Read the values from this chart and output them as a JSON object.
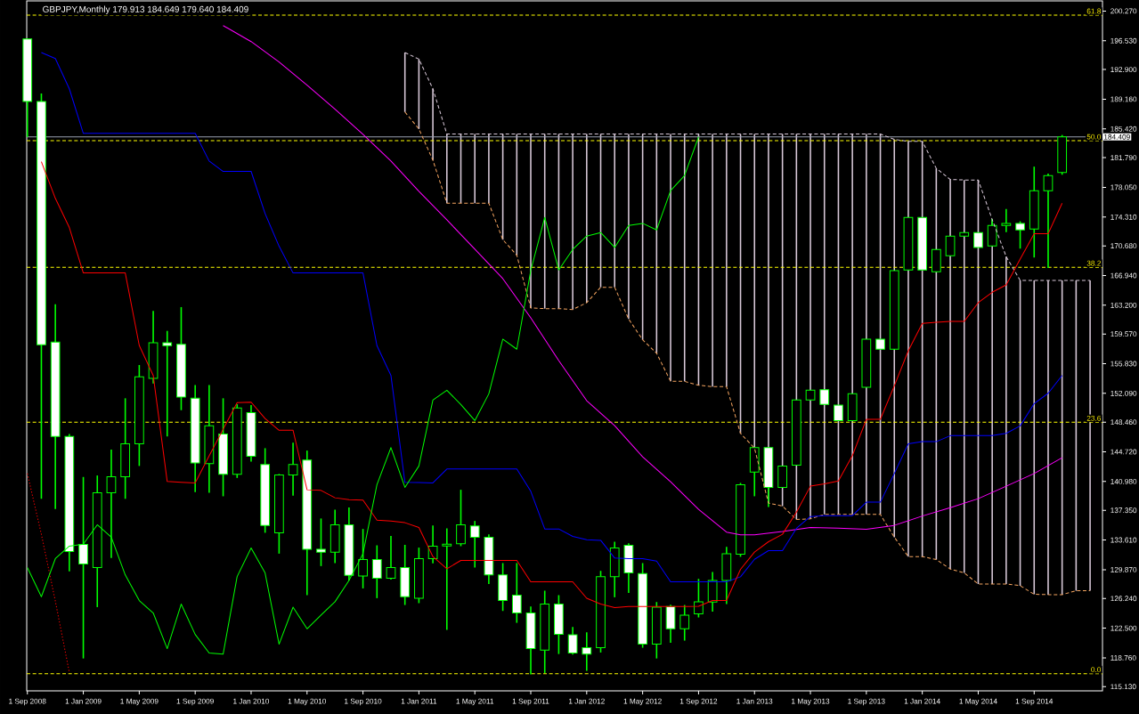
{
  "chart_data": {
    "type": "candlestick",
    "title": "GBPJPY,Monthly  179.913 184.649 179.640 184.409",
    "color": "#00ff00",
    "x": [
      "2008-09",
      "2008-10",
      "2008-11",
      "2008-12",
      "2009-01",
      "2009-02",
      "2009-03",
      "2009-04",
      "2009-05",
      "2009-06",
      "2009-07",
      "2009-08",
      "2009-09",
      "2009-10",
      "2009-11",
      "2009-12",
      "2010-01",
      "2010-02",
      "2010-03",
      "2010-04",
      "2010-05",
      "2010-06",
      "2010-07",
      "2010-08",
      "2010-09",
      "2010-10",
      "2010-11",
      "2010-12",
      "2011-01",
      "2011-02",
      "2011-03",
      "2011-04",
      "2011-05",
      "2011-06",
      "2011-07",
      "2011-08",
      "2011-09",
      "2011-10",
      "2011-11",
      "2011-12",
      "2012-01",
      "2012-02",
      "2012-03",
      "2012-04",
      "2012-05",
      "2012-06",
      "2012-07",
      "2012-08",
      "2012-09",
      "2012-10",
      "2012-11",
      "2012-12",
      "2013-01",
      "2013-02",
      "2013-03",
      "2013-04",
      "2013-05",
      "2013-06",
      "2013-07",
      "2013-08",
      "2013-09",
      "2013-10",
      "2013-11",
      "2013-12",
      "2014-01",
      "2014-02",
      "2014-03",
      "2014-04",
      "2014-05",
      "2014-06",
      "2014-07",
      "2014-08",
      "2014-09",
      "2014-10",
      "2014-11"
    ],
    "ohlc": [
      [
        196.75,
        196.75,
        184.4,
        188.88
      ],
      [
        188.88,
        189.87,
        138.8,
        158.22
      ],
      [
        158.56,
        163.33,
        137.5,
        146.66
      ],
      [
        146.66,
        146.98,
        129.66,
        132.16
      ],
      [
        133.06,
        141.55,
        118.68,
        130.58
      ],
      [
        130.14,
        141.74,
        125.15,
        139.57
      ],
      [
        139.57,
        145.0,
        131.34,
        141.59
      ],
      [
        141.59,
        151.47,
        138.8,
        145.74
      ],
      [
        145.74,
        155.66,
        142.94,
        154.17
      ],
      [
        153.97,
        162.47,
        153.34,
        158.47
      ],
      [
        158.47,
        159.96,
        146.66,
        158.1
      ],
      [
        158.27,
        162.96,
        149.97,
        151.62
      ],
      [
        151.47,
        153.15,
        139.64,
        143.31
      ],
      [
        143.23,
        153.15,
        139.57,
        147.99
      ],
      [
        146.98,
        151.47,
        139.12,
        141.88
      ],
      [
        141.88,
        150.72,
        141.43,
        150.24
      ],
      [
        149.67,
        150.6,
        143.5,
        144.17
      ],
      [
        143.12,
        145.18,
        134.52,
        135.45
      ],
      [
        134.52,
        141.93,
        131.89,
        141.81
      ],
      [
        141.81,
        145.86,
        139.19,
        143.12
      ],
      [
        143.68,
        144.88,
        126.66,
        132.45
      ],
      [
        132.45,
        136.32,
        130.32,
        132.08
      ],
      [
        132.08,
        137.44,
        130.7,
        135.53
      ],
      [
        135.53,
        137.7,
        128.52,
        129.16
      ],
      [
        129.08,
        135.0,
        127.51,
        131.15
      ],
      [
        131.15,
        132.94,
        126.28,
        128.79
      ],
      [
        128.79,
        134.13,
        128.63,
        130.14
      ],
      [
        130.14,
        133.0,
        125.42,
        126.46
      ],
      [
        126.28,
        132.65,
        125.65,
        131.26
      ],
      [
        131.26,
        135.45,
        130.66,
        132.83
      ],
      [
        132.87,
        135.08,
        122.28,
        133.09
      ],
      [
        133.13,
        139.94,
        132.83,
        135.53
      ],
      [
        135.37,
        136.01,
        130.14,
        133.96
      ],
      [
        133.96,
        134.33,
        128.07,
        129.2
      ],
      [
        129.2,
        130.7,
        124.67,
        125.98
      ],
      [
        126.66,
        130.7,
        123.17,
        124.41
      ],
      [
        124.41,
        125.23,
        116.66,
        119.92
      ],
      [
        119.73,
        127.22,
        116.84,
        125.53
      ],
      [
        125.53,
        126.66,
        119.24,
        121.71
      ],
      [
        121.67,
        122.65,
        119.17,
        119.36
      ],
      [
        120.03,
        121.97,
        117.12,
        119.24
      ],
      [
        120.03,
        129.72,
        119.43,
        129.0
      ],
      [
        129.0,
        133.39,
        126.39,
        132.61
      ],
      [
        132.94,
        133.2,
        126.95,
        129.46
      ],
      [
        129.38,
        130.7,
        120.03,
        120.48
      ],
      [
        120.48,
        125.79,
        118.68,
        125.15
      ],
      [
        125.23,
        125.45,
        120.66,
        122.42
      ],
      [
        122.42,
        125.42,
        120.93,
        124.14
      ],
      [
        124.3,
        128.71,
        123.85,
        125.83
      ],
      [
        125.79,
        129.57,
        124.59,
        128.52
      ],
      [
        128.52,
        132.75,
        125.53,
        131.89
      ],
      [
        131.82,
        140.8,
        131.49,
        140.58
      ],
      [
        142.18,
        145.25,
        139.12,
        145.25
      ],
      [
        145.25,
        145.25,
        137.77,
        140.24
      ],
      [
        140.24,
        142.94,
        140.24,
        142.94
      ],
      [
        143.05,
        151.25,
        143.05,
        151.25
      ],
      [
        151.25,
        152.48,
        151.25,
        152.48
      ],
      [
        152.55,
        152.55,
        150.69,
        150.69
      ],
      [
        150.6,
        150.6,
        148.66,
        148.66
      ],
      [
        148.66,
        152.03,
        148.66,
        152.03
      ],
      [
        152.85,
        158.92,
        152.85,
        158.92
      ],
      [
        158.92,
        158.92,
        157.65,
        157.65
      ],
      [
        157.65,
        167.56,
        157.65,
        167.56
      ],
      [
        167.64,
        174.26,
        167.64,
        174.26
      ],
      [
        174.26,
        174.26,
        167.64,
        167.64
      ],
      [
        167.42,
        170.22,
        167.42,
        170.22
      ],
      [
        169.44,
        171.91,
        169.44,
        171.91
      ],
      [
        171.91,
        172.36,
        171.91,
        172.36
      ],
      [
        172.36,
        172.36,
        170.48,
        170.48
      ],
      [
        170.67,
        174.07,
        170.67,
        173.25
      ],
      [
        173.25,
        175.31,
        172.42,
        173.51
      ],
      [
        173.51,
        173.77,
        170.33,
        172.69
      ],
      [
        172.8,
        180.66,
        169.21,
        177.63
      ],
      [
        177.63,
        179.77,
        167.9,
        179.54
      ],
      [
        179.913,
        184.649,
        179.64,
        184.409
      ]
    ],
    "series": [
      {
        "type": "line",
        "color": "#f4a460",
        "line_style": "dashed",
        "x": [
          "2010-12",
          "2011-01",
          "2011-02",
          "2011-03",
          "2011-04",
          "2011-05",
          "2011-06",
          "2011-07",
          "2011-08",
          "2011-09",
          "2011-10",
          "2011-11",
          "2011-12",
          "2012-01",
          "2012-02",
          "2012-03",
          "2012-04",
          "2012-05",
          "2012-06",
          "2012-07",
          "2012-08",
          "2012-09",
          "2012-10",
          "2012-11",
          "2012-12",
          "2013-01",
          "2013-02",
          "2013-03",
          "2013-04",
          "2013-05",
          "2013-06",
          "2013-07",
          "2013-08",
          "2013-09",
          "2013-10",
          "2013-11",
          "2013-12",
          "2014-01",
          "2014-02",
          "2014-03",
          "2014-04",
          "2014-05",
          "2014-06",
          "2014-07",
          "2014-08",
          "2014-09",
          "2014-10",
          "2014-11",
          "2014-12",
          "2015-01"
        ],
        "values": [
          187.55,
          185.41,
          181.48,
          176.06,
          176.06,
          176.06,
          176.06,
          171.46,
          169.5,
          162.85,
          162.77,
          162.77,
          162.65,
          163.52,
          165.46,
          165.46,
          161.46,
          158.84,
          157.15,
          153.6,
          153.6,
          153.11,
          152.93,
          152.93,
          147.05,
          145.18,
          138.26,
          137.89,
          136.2,
          136.27,
          136.83,
          136.83,
          136.83,
          136.83,
          136.83,
          133.96,
          131.52,
          131.52,
          131.15,
          129.95,
          129.46,
          128.07,
          128.07,
          128.07,
          127.85,
          126.77,
          126.72,
          126.72,
          127.22,
          127.22
        ]
      },
      {
        "type": "bar",
        "color": "#d8c8d8",
        "x": [
          "2010-12",
          "2011-01",
          "2011-02",
          "2011-03",
          "2011-04",
          "2011-05",
          "2011-06",
          "2011-07",
          "2011-08",
          "2011-09",
          "2011-10",
          "2011-11",
          "2011-12",
          "2012-01",
          "2012-02",
          "2012-03",
          "2012-04",
          "2012-05",
          "2012-06",
          "2012-07",
          "2012-08",
          "2012-09",
          "2012-10",
          "2012-11",
          "2012-12",
          "2013-01",
          "2013-02",
          "2013-03",
          "2013-04",
          "2013-05",
          "2013-06",
          "2013-07",
          "2013-08",
          "2013-09",
          "2013-10",
          "2013-11",
          "2013-12",
          "2014-01",
          "2014-02",
          "2014-03",
          "2014-04",
          "2014-05",
          "2014-06",
          "2014-07",
          "2014-08",
          "2014-09",
          "2014-10",
          "2014-11",
          "2014-12",
          "2015-01"
        ],
        "base": [
          187.55,
          185.41,
          181.48,
          176.06,
          176.06,
          176.06,
          176.06,
          171.46,
          169.5,
          162.85,
          162.77,
          162.77,
          162.65,
          163.52,
          165.46,
          165.46,
          161.46,
          158.84,
          157.15,
          153.6,
          153.6,
          153.11,
          152.93,
          152.93,
          147.05,
          145.18,
          138.26,
          137.89,
          136.2,
          136.27,
          136.83,
          136.83,
          136.83,
          136.83,
          136.83,
          133.96,
          131.52,
          131.52,
          131.15,
          129.95,
          129.46,
          128.07,
          128.07,
          128.07,
          127.85,
          126.77,
          126.72,
          126.72,
          127.22,
          127.22
        ],
        "values": [
          7.49,
          8.8,
          8.99,
          8.71,
          8.71,
          8.71,
          8.71,
          13.31,
          15.27,
          21.92,
          22.0,
          22.0,
          22.12,
          21.25,
          19.31,
          19.31,
          23.31,
          25.93,
          27.62,
          31.17,
          31.17,
          31.66,
          31.84,
          31.84,
          37.72,
          39.59,
          46.51,
          46.88,
          48.57,
          48.5,
          47.94,
          47.94,
          47.94,
          47.94,
          47.94,
          50.14,
          52.32,
          52.32,
          49.29,
          49.1,
          49.52,
          50.91,
          45.93,
          41.25,
          38.48,
          39.56,
          39.61,
          39.61,
          39.11,
          39.11
        ]
      },
      {
        "type": "line",
        "color": "#d8c8d8",
        "line_style": "dashed",
        "x": [
          "2010-12",
          "2011-01",
          "2011-02",
          "2011-03",
          "2011-04",
          "2011-05",
          "2011-06",
          "2011-07",
          "2011-08",
          "2011-09",
          "2011-10",
          "2011-11",
          "2011-12",
          "2012-01",
          "2012-02",
          "2012-03",
          "2012-04",
          "2012-05",
          "2012-06",
          "2012-07",
          "2012-08",
          "2012-09",
          "2012-10",
          "2012-11",
          "2012-12",
          "2013-01",
          "2013-02",
          "2013-03",
          "2013-04",
          "2013-05",
          "2013-06",
          "2013-07",
          "2013-08",
          "2013-09",
          "2013-10",
          "2013-11",
          "2013-12",
          "2014-01",
          "2014-02",
          "2014-03",
          "2014-04",
          "2014-05",
          "2014-06",
          "2014-07",
          "2014-08",
          "2014-09",
          "2014-10",
          "2014-11",
          "2014-12",
          "2015-01"
        ],
        "values": [
          195.04,
          194.21,
          190.47,
          184.77,
          184.77,
          184.77,
          184.77,
          184.77,
          184.77,
          184.77,
          184.77,
          184.77,
          184.77,
          184.77,
          184.77,
          184.77,
          184.77,
          184.77,
          184.77,
          184.77,
          184.77,
          184.77,
          184.77,
          184.77,
          184.77,
          184.77,
          184.77,
          184.77,
          184.77,
          184.77,
          184.77,
          184.77,
          184.77,
          184.77,
          184.77,
          184.1,
          183.84,
          183.84,
          180.44,
          179.05,
          178.98,
          178.98,
          174.0,
          169.32,
          166.33,
          166.33,
          166.33,
          166.33,
          166.33,
          166.33
        ]
      },
      {
        "type": "line",
        "color": "#ff00ff",
        "line_style": "solid",
        "x": [
          "2009-11",
          "2010-01",
          "2010-03",
          "2010-05",
          "2010-07",
          "2010-09",
          "2010-11",
          "2011-01",
          "2011-03",
          "2011-05",
          "2011-07",
          "2011-09",
          "2011-11",
          "2012-01",
          "2012-03",
          "2012-05",
          "2012-07",
          "2012-09",
          "2012-11",
          "2012-12",
          "2013-01",
          "2013-03",
          "2013-05",
          "2013-07",
          "2013-09",
          "2013-11",
          "2014-01",
          "2014-03",
          "2014-05",
          "2014-07",
          "2014-09",
          "2014-11"
        ],
        "values": [
          198.44,
          196.42,
          193.84,
          190.92,
          187.89,
          184.74,
          181.37,
          177.55,
          173.96,
          170.26,
          166.55,
          161.61,
          156.22,
          151.17,
          148.02,
          144.09,
          140.95,
          137.47,
          134.61,
          134.25,
          134.25,
          134.68,
          135.19,
          135.11,
          134.97,
          135.45,
          136.63,
          137.69,
          138.82,
          140.39,
          141.99,
          143.98
        ]
      },
      {
        "type": "line",
        "color": "#0000ff",
        "line_style": "solid",
        "x": [
          "2008-10",
          "2008-11",
          "2008-12",
          "2009-01",
          "2009-02",
          "2009-03",
          "2009-04",
          "2009-05",
          "2009-06",
          "2009-07",
          "2009-08",
          "2009-09",
          "2009-10",
          "2009-11",
          "2009-12",
          "2010-01",
          "2010-02",
          "2010-03",
          "2010-04",
          "2010-05",
          "2010-06",
          "2010-07",
          "2010-08",
          "2010-09",
          "2010-10",
          "2010-11",
          "2010-12",
          "2011-01",
          "2011-02",
          "2011-03",
          "2011-04",
          "2011-05",
          "2011-06",
          "2011-07",
          "2011-08",
          "2011-09",
          "2011-10",
          "2011-11",
          "2011-12",
          "2012-01",
          "2012-02",
          "2012-03",
          "2012-04",
          "2012-05",
          "2012-06",
          "2012-07",
          "2012-08",
          "2012-09",
          "2012-10",
          "2012-11",
          "2012-12",
          "2013-01",
          "2013-02",
          "2013-03",
          "2013-04",
          "2013-05",
          "2013-06",
          "2013-07",
          "2013-08",
          "2013-09",
          "2013-10",
          "2013-11",
          "2013-12",
          "2014-01",
          "2014-02",
          "2014-03",
          "2014-04",
          "2014-05",
          "2014-06",
          "2014-07",
          "2014-08",
          "2014-09",
          "2014-10",
          "2014-11"
        ],
        "values": [
          195.04,
          194.29,
          190.47,
          184.85,
          184.85,
          184.85,
          184.85,
          184.85,
          184.85,
          184.85,
          184.85,
          184.85,
          181.37,
          180.06,
          180.06,
          180.06,
          174.75,
          170.63,
          167.26,
          167.26,
          167.26,
          167.26,
          167.26,
          167.26,
          158.1,
          154.35,
          140.87,
          140.84,
          140.8,
          142.56,
          142.56,
          142.56,
          142.56,
          142.56,
          142.56,
          139.75,
          135.0,
          135.0,
          134.07,
          133.65,
          133.57,
          131.33,
          131.26,
          131.26,
          130.96,
          128.34,
          128.34,
          128.34,
          128.34,
          128.34,
          128.97,
          131.18,
          132.27,
          132.27,
          135.08,
          136.57,
          136.68,
          136.68,
          136.68,
          138.37,
          138.37,
          141.99,
          145.74,
          146.0,
          146.0,
          146.76,
          146.76,
          146.76,
          146.76,
          147.05,
          147.99,
          150.8,
          152.1,
          154.35
        ]
      },
      {
        "type": "line",
        "color": "#ff0000",
        "line_style": "solid",
        "x": [
          "2008-10",
          "2008-11",
          "2008-12",
          "2009-01",
          "2009-02",
          "2009-03",
          "2009-04",
          "2009-05",
          "2009-06",
          "2009-07",
          "2009-08",
          "2009-09",
          "2009-10",
          "2009-11",
          "2009-12",
          "2010-01",
          "2010-02",
          "2010-03",
          "2010-04",
          "2010-05",
          "2010-06",
          "2010-07",
          "2010-08",
          "2010-09",
          "2010-10",
          "2010-11",
          "2010-12",
          "2011-01",
          "2011-02",
          "2011-03",
          "2011-04",
          "2011-05",
          "2011-06",
          "2011-07",
          "2011-08",
          "2011-09",
          "2011-10",
          "2011-11",
          "2011-12",
          "2012-01",
          "2012-02",
          "2012-03",
          "2012-04",
          "2012-05",
          "2012-06",
          "2012-07",
          "2012-08",
          "2012-09",
          "2012-10",
          "2012-11",
          "2012-12",
          "2013-01",
          "2013-02",
          "2013-03",
          "2013-04",
          "2013-05",
          "2013-06",
          "2013-07",
          "2013-08",
          "2013-09",
          "2013-10",
          "2013-11",
          "2013-12",
          "2014-01",
          "2014-02",
          "2014-03",
          "2014-04",
          "2014-05",
          "2014-06",
          "2014-07",
          "2014-08",
          "2014-09",
          "2014-10",
          "2014-11"
        ],
        "values": [
          181.29,
          176.66,
          172.99,
          167.26,
          167.26,
          167.26,
          167.26,
          158.13,
          154.35,
          140.98,
          140.89,
          140.8,
          144.21,
          147.57,
          150.91,
          150.98,
          148.92,
          147.43,
          147.43,
          139.94,
          139.86,
          138.93,
          138.7,
          138.63,
          136.12,
          136.01,
          135.79,
          135.19,
          131.52,
          129.98,
          131.04,
          131.04,
          131.04,
          131.04,
          131.04,
          128.34,
          128.34,
          128.34,
          128.34,
          126.27,
          125.53,
          125.08,
          125.23,
          125.23,
          125.23,
          125.23,
          125.23,
          125.26,
          125.98,
          125.98,
          129.91,
          132.08,
          133.39,
          134.33,
          137.13,
          140.39,
          140.69,
          141.06,
          144.24,
          148.81,
          148.81,
          153.04,
          157.46,
          160.9,
          161.05,
          161.16,
          161.16,
          163.52,
          164.83,
          165.76,
          169.02,
          172.2,
          172.2,
          176.06
        ]
      },
      {
        "type": "line",
        "color": "#ff0000",
        "line_style": "dotted",
        "x": [
          "2008-09",
          "2008-10",
          "2008-11",
          "2008-12"
        ],
        "values": [
          141.99,
          134.33,
          125.9,
          116.92
        ]
      },
      {
        "type": "line",
        "color": "#00ff00",
        "line_style": "solid",
        "x": [
          "2008-09",
          "2008-10",
          "2008-11",
          "2008-12",
          "2009-01",
          "2009-02",
          "2009-03",
          "2009-04",
          "2009-05",
          "2009-06",
          "2009-07",
          "2009-08",
          "2009-09",
          "2009-10",
          "2009-11",
          "2009-12",
          "2010-01",
          "2010-02",
          "2010-03",
          "2010-04",
          "2010-05",
          "2010-06",
          "2010-07",
          "2010-08",
          "2010-09",
          "2010-10",
          "2010-11",
          "2010-12",
          "2011-01",
          "2011-02",
          "2011-03",
          "2011-04",
          "2011-05",
          "2011-06",
          "2011-07",
          "2011-08",
          "2011-09",
          "2011-10",
          "2011-11",
          "2011-12",
          "2012-01",
          "2012-02",
          "2012-03",
          "2012-04",
          "2012-05",
          "2012-06",
          "2012-07",
          "2012-08",
          "2012-09"
        ],
        "values": [
          130.14,
          126.46,
          131.26,
          132.83,
          133.09,
          135.53,
          133.96,
          129.2,
          125.98,
          124.41,
          119.92,
          125.53,
          121.71,
          119.36,
          119.24,
          129.0,
          132.61,
          129.46,
          120.48,
          125.15,
          122.42,
          124.14,
          125.83,
          128.52,
          131.89,
          140.58,
          145.25,
          140.24,
          142.94,
          151.25,
          152.48,
          150.69,
          148.66,
          152.03,
          158.92,
          157.65,
          167.56,
          174.26,
          167.64,
          170.22,
          171.91,
          172.36,
          170.48,
          173.25,
          173.51,
          172.69,
          177.63,
          179.54,
          184.409
        ]
      }
    ],
    "ref_lines": [
      {
        "axis": "y",
        "value": 199.75,
        "color": "#ffff00",
        "line_style": "dashed"
      },
      {
        "axis": "y",
        "value": 183.92,
        "color": "#ffff00",
        "line_style": "dashed"
      },
      {
        "axis": "y",
        "value": 167.98,
        "color": "#ffff00",
        "line_style": "dashed"
      },
      {
        "axis": "y",
        "value": 148.44,
        "color": "#ffff00",
        "line_style": "dashed"
      },
      {
        "axis": "y",
        "value": 116.77,
        "color": "#ffff00",
        "line_style": "dashed"
      },
      {
        "axis": "y",
        "value": 184.409,
        "label": "184.409",
        "color": "#9aa0b0",
        "line_style": "solid"
      }
    ],
    "annotations": [
      {
        "text": "61.8",
        "y": 199.75
      },
      {
        "text": "50.0",
        "y": 183.92
      },
      {
        "text": "38.2",
        "y": 167.98
      },
      {
        "text": "23.6",
        "y": 148.44
      },
      {
        "text": "0.0",
        "y": 116.77
      }
    ],
    "xlim": [
      "2008-08-30",
      "2015-01-28"
    ],
    "xticks": [
      {
        "value": "2008-09",
        "label": "1 Sep 2008"
      },
      {
        "value": "2009-01",
        "label": "1 Jan 2009"
      },
      {
        "value": "2009-05",
        "label": "1 May 2009"
      },
      {
        "value": "2009-09",
        "label": "1 Sep 2009"
      },
      {
        "value": "2010-01",
        "label": "1 Jan 2010"
      },
      {
        "value": "2010-05",
        "label": "1 May 2010"
      },
      {
        "value": "2010-09",
        "label": "1 Sep 2010"
      },
      {
        "value": "2011-01",
        "label": "1 Jan 2011"
      },
      {
        "value": "2011-05",
        "label": "1 May 2011"
      },
      {
        "value": "2011-09",
        "label": "1 Sep 2011"
      },
      {
        "value": "2012-01",
        "label": "1 Jan 2012"
      },
      {
        "value": "2012-05",
        "label": "1 May 2012"
      },
      {
        "value": "2012-09",
        "label": "1 Sep 2012"
      },
      {
        "value": "2013-01",
        "label": "1 Jan 2013"
      },
      {
        "value": "2013-05",
        "label": "1 May 2013"
      },
      {
        "value": "2013-09",
        "label": "1 Sep 2013"
      },
      {
        "value": "2014-01",
        "label": "1 Jan 2014"
      },
      {
        "value": "2014-05",
        "label": "1 May 2014"
      },
      {
        "value": "2014-09",
        "label": "1 Sep 2014"
      }
    ],
    "ylim": [
      114.6,
      201.55
    ],
    "yticks": [
      {
        "value": 200.27,
        "label": "200.270"
      },
      {
        "value": 196.53,
        "label": "196.530"
      },
      {
        "value": 192.9,
        "label": "192.900"
      },
      {
        "value": 189.16,
        "label": "189.160"
      },
      {
        "value": 185.42,
        "label": "185.420"
      },
      {
        "value": 181.79,
        "label": "181.790"
      },
      {
        "value": 178.05,
        "label": "178.050"
      },
      {
        "value": 174.31,
        "label": "174.310"
      },
      {
        "value": 170.68,
        "label": "170.680"
      },
      {
        "value": 166.94,
        "label": "166.940"
      },
      {
        "value": 163.2,
        "label": "163.200"
      },
      {
        "value": 159.57,
        "label": "159.570"
      },
      {
        "value": 155.83,
        "label": "155.830"
      },
      {
        "value": 152.09,
        "label": "152.090"
      },
      {
        "value": 148.46,
        "label": "148.460"
      },
      {
        "value": 144.72,
        "label": "144.720"
      },
      {
        "value": 140.98,
        "label": "140.980"
      },
      {
        "value": 137.35,
        "label": "137.350"
      },
      {
        "value": 133.61,
        "label": "133.610"
      },
      {
        "value": 129.87,
        "label": "129.870"
      },
      {
        "value": 126.24,
        "label": "126.240"
      },
      {
        "value": 122.5,
        "label": "122.500"
      },
      {
        "value": 118.76,
        "label": "118.760"
      },
      {
        "value": 115.13,
        "label": "115.130"
      }
    ]
  }
}
